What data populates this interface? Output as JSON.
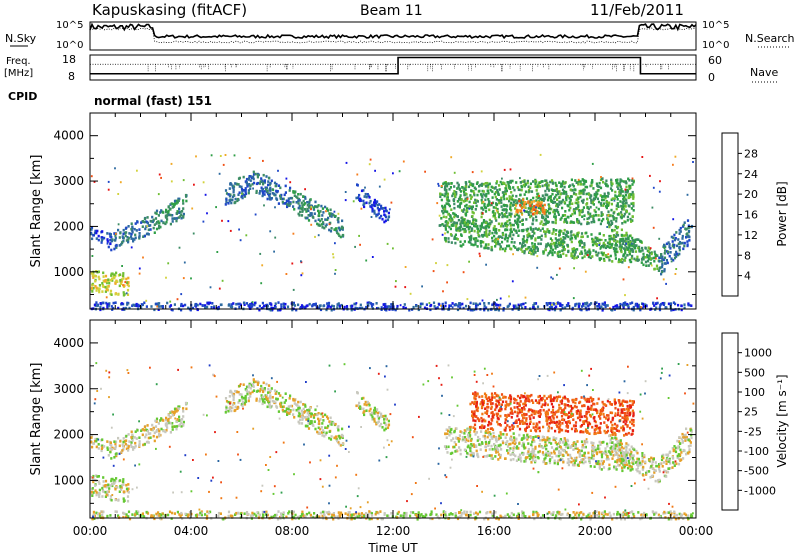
{
  "header": {
    "title": "Kapuskasing (fitACF)",
    "beam": "Beam 11",
    "date": "11/Feb/2011"
  },
  "strips": {
    "nsky": {
      "label": "N.Sky",
      "ticks": [
        "10^5",
        "10^0"
      ]
    },
    "nsearch": {
      "label": "N.Search",
      "ticks": [
        "10^5",
        "10^0"
      ]
    },
    "freq": {
      "label_line1": "Freq.",
      "label_line2": "[MHz]",
      "ticks": [
        "18",
        "8"
      ]
    },
    "nave": {
      "label": "Nave",
      "ticks": [
        "60",
        "0"
      ]
    },
    "cpid": {
      "label": "CPID",
      "value": "normal (fast) 151"
    }
  },
  "chart_data": [
    {
      "type": "heatmap",
      "panel": "power",
      "ylabel": "Slant Range [km]",
      "ylim": [
        180,
        4500
      ],
      "yticks": [
        "1000",
        "2000",
        "3000",
        "4000"
      ],
      "xlim": [
        0,
        24
      ],
      "colorbar": {
        "label": "Power [dB]",
        "ticks": [
          "4",
          "8",
          "12",
          "16",
          "20",
          "24",
          "28"
        ],
        "colors": [
          "#1414e6",
          "#1e46c8",
          "#2d6aa0",
          "#3c8c64",
          "#2e9e46",
          "#6ebe32",
          "#d2d23c",
          "#f0aa28",
          "#f57d1e",
          "#f05014",
          "#e61414"
        ]
      },
      "bands": [
        {
          "t": [
            0.0,
            0.8
          ],
          "r": [
            1900,
            1700
          ],
          "w": 150,
          "level": 1
        },
        {
          "t": [
            0.8,
            2.5
          ],
          "r": [
            1700,
            2100
          ],
          "w": 200,
          "level": 2
        },
        {
          "t": [
            2.5,
            3.8
          ],
          "r": [
            2100,
            2500
          ],
          "w": 250,
          "level": 3
        },
        {
          "t": [
            5.3,
            6.5
          ],
          "r": [
            2700,
            3000
          ],
          "w": 250,
          "level": 2
        },
        {
          "t": [
            6.5,
            8.0
          ],
          "r": [
            3000,
            2600
          ],
          "w": 250,
          "level": 2
        },
        {
          "t": [
            8.0,
            10.0
          ],
          "r": [
            2600,
            2000
          ],
          "w": 250,
          "level": 3
        },
        {
          "t": [
            10.5,
            11.8
          ],
          "r": [
            2800,
            2200
          ],
          "w": 200,
          "level": 1
        },
        {
          "t": [
            0.0,
            1.5
          ],
          "r": [
            800,
            750
          ],
          "w": 250,
          "level": 6
        },
        {
          "t": [
            13.8,
            21.5
          ],
          "r": [
            2500,
            2600
          ],
          "w": 500,
          "level": 4
        },
        {
          "t": [
            14.0,
            21.5
          ],
          "r": [
            1900,
            1500
          ],
          "w": 300,
          "level": 4
        },
        {
          "t": [
            16.8,
            18.0
          ],
          "r": [
            2500,
            2400
          ],
          "w": 150,
          "level": 8
        },
        {
          "t": [
            20.5,
            22.5
          ],
          "r": [
            1900,
            1200
          ],
          "w": 250,
          "level": 4
        },
        {
          "t": [
            22.5,
            23.8
          ],
          "r": [
            1200,
            2000
          ],
          "w": 300,
          "level": 2
        },
        {
          "t": [
            0.0,
            23.8
          ],
          "r": [
            250,
            250
          ],
          "w": 100,
          "level": 1
        }
      ]
    },
    {
      "type": "heatmap",
      "panel": "velocity",
      "ylabel": "Slant Range [km]",
      "ylim": [
        180,
        4500
      ],
      "yticks": [
        "1000",
        "2000",
        "3000",
        "4000"
      ],
      "xlim": [
        0,
        24
      ],
      "xticks": [
        "00:00",
        "04:00",
        "08:00",
        "12:00",
        "16:00",
        "20:00",
        "00:00"
      ],
      "xlabel": "Time UT",
      "colorbar": {
        "label": "Velocity [m s⁻¹]",
        "ticks": [
          "1000",
          "500",
          "100",
          "25",
          "-25",
          "-100",
          "-500",
          "-1000"
        ],
        "colors": [
          "#1e3cc8",
          "#2864a0",
          "#32a050",
          "#64c832",
          "#c8c8be",
          "#e6a028",
          "#f07814",
          "#f05014",
          "#e61e14"
        ]
      },
      "bands": [
        {
          "t": [
            0.0,
            0.8
          ],
          "r": [
            1900,
            1700
          ],
          "w": 150,
          "level": 4
        },
        {
          "t": [
            0.8,
            2.5
          ],
          "r": [
            1700,
            2100
          ],
          "w": 200,
          "level": 4
        },
        {
          "t": [
            2.5,
            3.8
          ],
          "r": [
            2100,
            2500
          ],
          "w": 250,
          "level": 4
        },
        {
          "t": [
            5.3,
            6.5
          ],
          "r": [
            2700,
            3000
          ],
          "w": 250,
          "level": 4
        },
        {
          "t": [
            6.5,
            8.0
          ],
          "r": [
            3000,
            2600
          ],
          "w": 250,
          "level": 4
        },
        {
          "t": [
            8.0,
            10.0
          ],
          "r": [
            2600,
            2000
          ],
          "w": 250,
          "level": 4
        },
        {
          "t": [
            10.5,
            11.8
          ],
          "r": [
            2800,
            2200
          ],
          "w": 200,
          "level": 4
        },
        {
          "t": [
            0.0,
            1.5
          ],
          "r": [
            900,
            800
          ],
          "w": 250,
          "level": 4
        },
        {
          "t": [
            15.0,
            21.5
          ],
          "r": [
            2550,
            2400
          ],
          "w": 400,
          "level": 7
        },
        {
          "t": [
            14.0,
            21.5
          ],
          "r": [
            1900,
            1500
          ],
          "w": 300,
          "level": 4
        },
        {
          "t": [
            20.5,
            22.5
          ],
          "r": [
            1800,
            1200
          ],
          "w": 250,
          "level": 4
        },
        {
          "t": [
            22.5,
            23.8
          ],
          "r": [
            1200,
            2000
          ],
          "w": 300,
          "level": 4
        },
        {
          "t": [
            0.0,
            23.8
          ],
          "r": [
            250,
            250
          ],
          "w": 100,
          "level": 4
        }
      ]
    }
  ]
}
